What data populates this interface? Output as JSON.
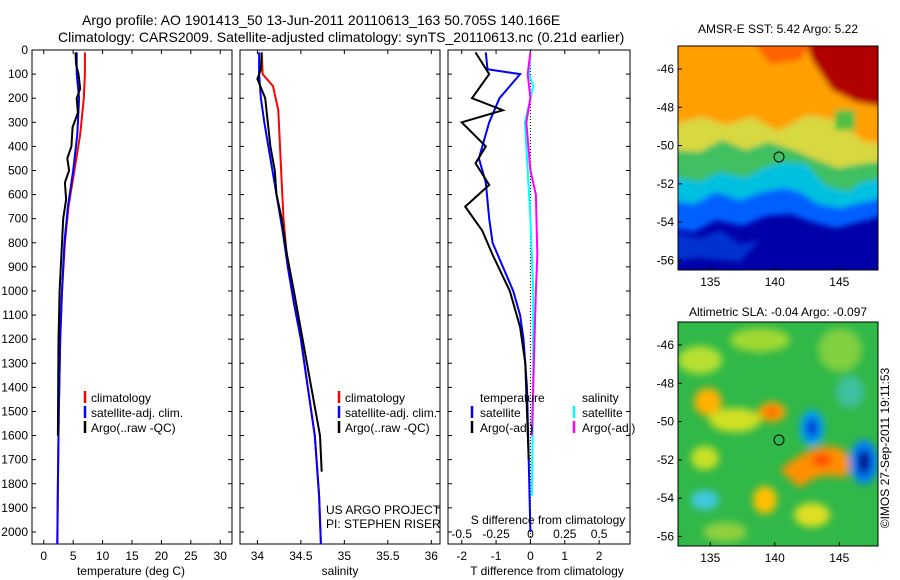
{
  "header": {
    "line1": "Argo profile: AO 1901413_50 13-Jun-2011 20110613_163 50.705S 140.166E",
    "line2": "Climatology: CARS2009. Satellite-adjusted climatology: synTS_20110613.nc (0.21d earlier)"
  },
  "colors": {
    "climatology": "#ff0000",
    "satellite": "#0000ff",
    "argo": "#000000",
    "sal_satellite": "#00ffff",
    "sal_argo": "#ff00ff"
  },
  "legend": {
    "climatology": "climatology",
    "satellite_adj": "satellite-adj. clim.",
    "argo_raw": "Argo(..raw -QC)",
    "temperature": "temperature",
    "salinity": "salinity",
    "satellite": "satellite",
    "argo_adj": "Argo(-adj)"
  },
  "project": {
    "line1": "US ARGO PROJECT",
    "line2": "PI: STEPHEN RISER"
  },
  "stamp": "©IMOS 27-Sep-2011 19:11:53",
  "chart_data": [
    {
      "type": "line",
      "id": "temperature",
      "xlabel": "temperature (deg C)",
      "ylabel": "",
      "xlim": [
        -2,
        32
      ],
      "ylim": [
        2050,
        0
      ],
      "xticks": [
        0,
        5,
        10,
        15,
        20,
        25,
        30
      ],
      "yticks": [
        0,
        100,
        200,
        300,
        400,
        500,
        600,
        700,
        800,
        900,
        1000,
        1100,
        1200,
        1300,
        1400,
        1500,
        1600,
        1700,
        1800,
        1900,
        2000
      ],
      "series": [
        {
          "name": "climatology",
          "color": "climatology",
          "x": [
            7.0,
            7.0,
            6.8,
            6.2,
            5.2,
            4.2,
            3.6,
            3.1,
            2.8,
            2.55,
            2.4,
            2.3
          ],
          "y": [
            10,
            100,
            200,
            350,
            500,
            650,
            800,
            1000,
            1200,
            1500,
            1800,
            2050
          ]
        },
        {
          "name": "satellite-adj. clim.",
          "color": "satellite",
          "x": [
            5.6,
            5.6,
            6.0,
            5.7,
            5.0,
            4.1,
            3.5,
            3.1,
            2.8,
            2.55,
            2.4,
            2.3
          ],
          "y": [
            10,
            100,
            200,
            350,
            500,
            650,
            800,
            1000,
            1200,
            1500,
            1800,
            2050
          ]
        },
        {
          "name": "Argo(..raw -QC)",
          "color": "argo",
          "x": [
            5.4,
            5.5,
            5.9,
            6.2,
            5.6,
            5.8,
            4.9,
            4.7,
            4.0,
            4.3,
            3.6,
            3.8,
            3.3,
            3.1,
            2.9,
            2.7,
            2.6,
            2.5,
            2.45,
            2.4
          ],
          "y": [
            10,
            60,
            100,
            160,
            200,
            260,
            320,
            400,
            450,
            500,
            550,
            620,
            700,
            800,
            900,
            1000,
            1100,
            1200,
            1400,
            1600
          ]
        }
      ]
    },
    {
      "type": "line",
      "id": "salinity",
      "xlabel": "salinity",
      "ylabel": "",
      "xlim": [
        33.8,
        36.1
      ],
      "ylim": [
        2050,
        0
      ],
      "xticks": [
        34,
        34.5,
        35,
        35.5,
        36
      ],
      "xtick_labels": [
        "34",
        "34.5",
        "35",
        "35.5",
        "36"
      ],
      "yticks": [
        0,
        100,
        200,
        300,
        400,
        500,
        600,
        700,
        800,
        900,
        1000,
        1100,
        1200,
        1300,
        1400,
        1500,
        1600,
        1700,
        1800,
        1900,
        2000
      ],
      "series": [
        {
          "name": "climatology",
          "color": "climatology",
          "x": [
            34.05,
            34.06,
            34.18,
            34.24,
            34.26,
            34.28,
            34.3,
            34.35,
            34.42,
            34.5,
            34.58,
            34.66,
            34.71,
            34.73
          ],
          "y": [
            10,
            100,
            150,
            250,
            400,
            550,
            700,
            900,
            1050,
            1200,
            1400,
            1600,
            1850,
            2050
          ]
        },
        {
          "name": "satellite-adj. clim.",
          "color": "satellite",
          "x": [
            34.02,
            34.02,
            34.04,
            34.08,
            34.15,
            34.22,
            34.29,
            34.35,
            34.42,
            34.5,
            34.58,
            34.66,
            34.71,
            34.73
          ],
          "y": [
            10,
            100,
            200,
            300,
            450,
            600,
            750,
            900,
            1050,
            1200,
            1400,
            1600,
            1850,
            2050
          ]
        },
        {
          "name": "Argo(..raw -QC)",
          "color": "argo",
          "x": [
            34.05,
            34.04,
            34.0,
            34.09,
            34.12,
            34.15,
            34.2,
            34.22,
            34.28,
            34.34,
            34.42,
            34.52,
            34.62,
            34.72,
            34.74
          ],
          "y": [
            10,
            80,
            120,
            200,
            300,
            400,
            500,
            600,
            700,
            850,
            1000,
            1200,
            1400,
            1600,
            1750
          ]
        }
      ]
    },
    {
      "type": "line",
      "id": "difference",
      "xlabel": "T difference from climatology",
      "x2label": "S difference from climatology",
      "xlim": [
        -2.4,
        2.9
      ],
      "ylim": [
        2050,
        0
      ],
      "xticks": [
        -2,
        -1,
        0,
        1,
        2
      ],
      "x2ticks": [
        -0.5,
        -0.25,
        0,
        0.25,
        0.5
      ],
      "x2tick_labels": [
        "-0.5",
        "-0.25",
        "0",
        "0.25",
        "0.5"
      ],
      "x2lim": [
        -0.6,
        0.725
      ],
      "yticks": [
        0,
        100,
        200,
        300,
        400,
        500,
        600,
        700,
        800,
        900,
        1000,
        1100,
        1200,
        1300,
        1400,
        1500,
        1600,
        1700,
        1800,
        1900,
        2000
      ],
      "series": [
        {
          "name": "temperature satellite",
          "color": "satellite",
          "x": [
            -1.3,
            -1.25,
            -0.3,
            -0.9,
            -1.2,
            -1.5,
            -1.3,
            -1.2,
            -1.1,
            -0.8,
            -0.5,
            -0.3,
            -0.2,
            -0.1,
            -0.05,
            0.0
          ],
          "y": [
            10,
            80,
            100,
            200,
            300,
            450,
            550,
            700,
            800,
            900,
            1000,
            1100,
            1200,
            1400,
            1700,
            2000
          ]
        },
        {
          "name": "temperature Argo(-adj)",
          "color": "argo",
          "x": [
            -1.6,
            -1.2,
            -1.7,
            -0.8,
            -2.0,
            -1.3,
            -1.6,
            -1.2,
            -1.9,
            -1.4,
            -1.1,
            -0.6,
            -0.3,
            -0.15,
            -0.1,
            -0.05
          ],
          "y": [
            10,
            100,
            200,
            250,
            300,
            400,
            470,
            560,
            650,
            750,
            850,
            1000,
            1150,
            1300,
            1500,
            1700
          ]
        },
        {
          "name": "salinity satellite",
          "color": "sal_satellite",
          "x": [
            0.0,
            -0.01,
            0.02,
            -0.04,
            -0.02,
            0.0,
            0.01,
            0.02,
            0.02,
            0.01
          ],
          "y": [
            10,
            100,
            150,
            300,
            500,
            700,
            850,
            1000,
            1400,
            1850
          ]
        },
        {
          "name": "salinity Argo(-adj)",
          "color": "sal_argo",
          "x": [
            0.0,
            -0.02,
            0.0,
            -0.03,
            0.0,
            0.04,
            0.05,
            0.04,
            0.03,
            0.02,
            0.01
          ],
          "y": [
            10,
            100,
            200,
            300,
            500,
            600,
            850,
            1000,
            1200,
            1400,
            1600
          ]
        }
      ]
    },
    {
      "type": "heatmap",
      "id": "sst",
      "title": "AMSR-E SST: 5.42 Argo: 5.22",
      "xlim": [
        132.5,
        148
      ],
      "ylim": [
        -56.5,
        -44.8
      ],
      "xticks": [
        135,
        140,
        145
      ],
      "yticks": [
        -46,
        -48,
        -50,
        -52,
        -54,
        -56
      ],
      "marker": {
        "x": 140.166,
        "y": -50.705
      }
    },
    {
      "type": "heatmap",
      "id": "sla",
      "title": "Altimetric SLA: -0.04 Argo: -0.097",
      "xlim": [
        132.5,
        148
      ],
      "ylim": [
        -56.5,
        -44.8
      ],
      "xticks": [
        135,
        140,
        145
      ],
      "yticks": [
        -46,
        -48,
        -50,
        -52,
        -54,
        -56
      ],
      "marker": {
        "x": 140.166,
        "y": -50.705
      }
    }
  ]
}
